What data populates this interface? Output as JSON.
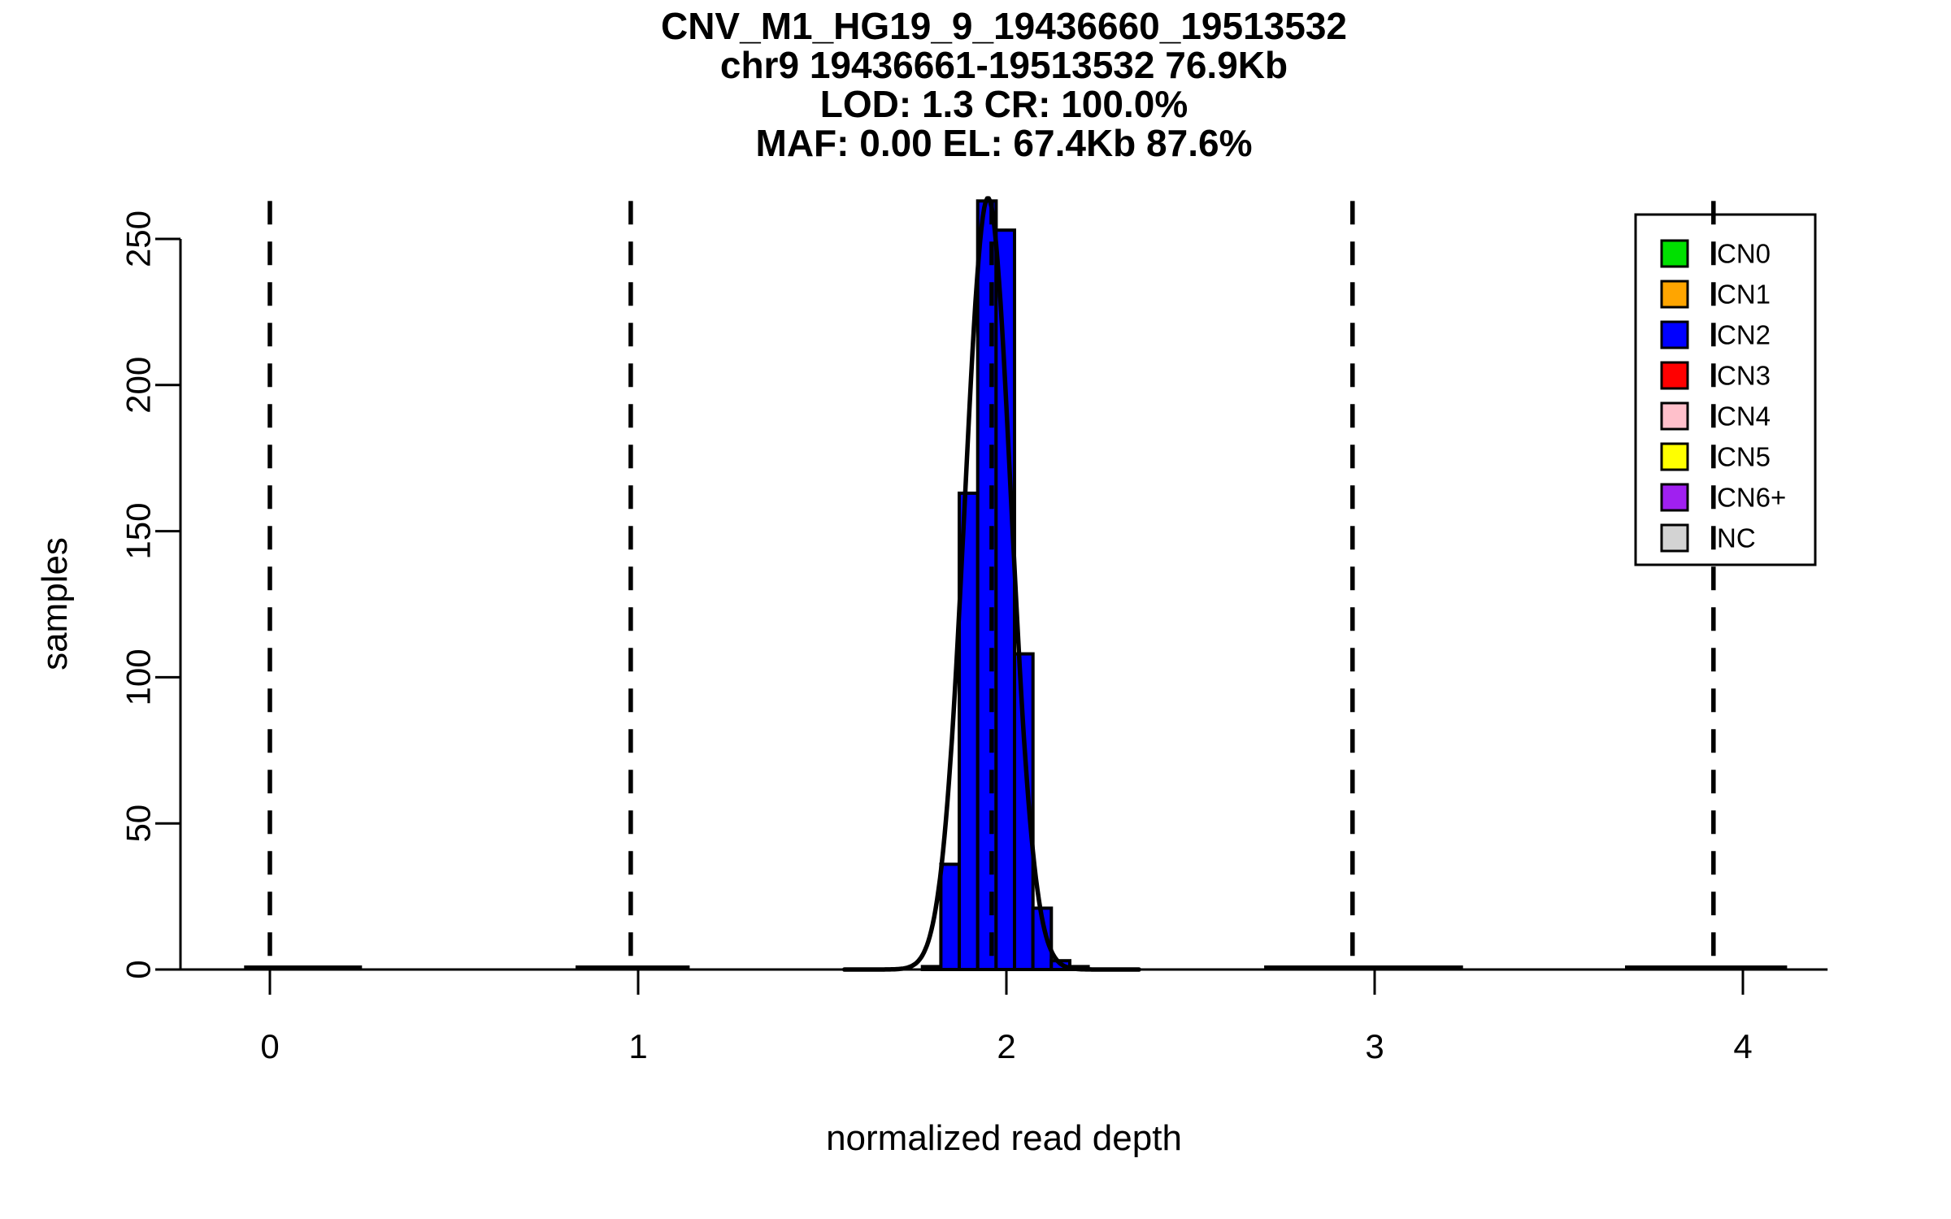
{
  "chart_data": {
    "type": "bar",
    "subtype": "histogram-with-density-curve",
    "title_lines": [
      "CNV_M1_HG19_9_19436660_19513532",
      "chr9 19436661-19513532 76.9Kb",
      "LOD: 1.3 CR: 100.0%",
      "MAF: 0.00 EL: 67.4Kb 87.6%"
    ],
    "xlabel": "normalized read depth",
    "ylabel": "samples",
    "x_ticks": [
      0,
      1,
      2,
      3,
      4
    ],
    "y_ticks": [
      0,
      50,
      100,
      150,
      200,
      250
    ],
    "xlim": [
      -0.25,
      4.23
    ],
    "ylim": [
      0,
      263
    ],
    "grid": false,
    "legend_position": "top-right",
    "histogram": {
      "series_label": "CN2",
      "fill_color": "#0000ff",
      "stroke_color": "#000000",
      "bin_start": 1.772,
      "bin_width": 0.05,
      "counts": [
        1,
        36,
        163,
        263,
        253,
        108,
        21,
        3,
        1
      ]
    },
    "density_curve": {
      "mean": 1.95,
      "sd": 0.063,
      "peak": 264,
      "x_min": 1.56,
      "x_max": 2.36,
      "color": "#000000"
    },
    "component_curve_segments": [
      [
        -0.07,
        0.25
      ],
      [
        0.83,
        1.14
      ],
      [
        2.7,
        3.24
      ],
      [
        3.68,
        4.12
      ]
    ],
    "dashed_guides": [
      0.0,
      0.98,
      1.96,
      2.94,
      3.92
    ],
    "legend": [
      {
        "label": "CN0",
        "color": "#00e000"
      },
      {
        "label": "CN1",
        "color": "#ffa500"
      },
      {
        "label": "CN2",
        "color": "#0000ff"
      },
      {
        "label": "CN3",
        "color": "#ff0000"
      },
      {
        "label": "CN4",
        "color": "#ffc0cb"
      },
      {
        "label": "CN5",
        "color": "#ffff00"
      },
      {
        "label": "CN6+",
        "color": "#a020f0"
      },
      {
        "label": "NC",
        "color": "#d3d3d3"
      }
    ]
  }
}
